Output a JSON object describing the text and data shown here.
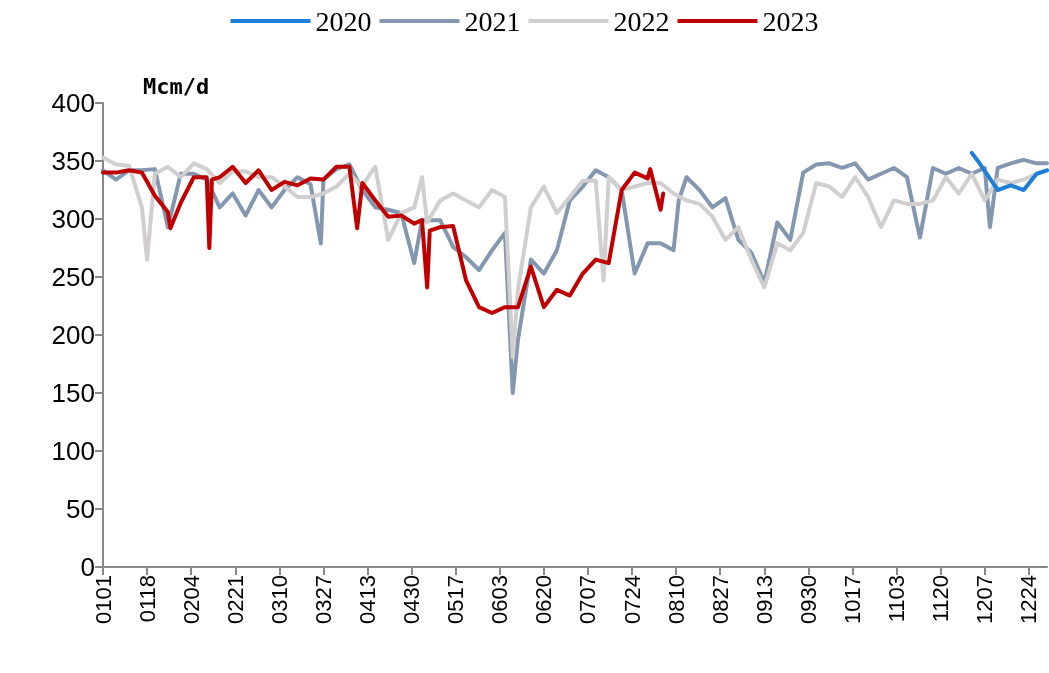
{
  "chart_data": {
    "type": "line",
    "ylabel": "Mcm/d",
    "xlim": [
      "--01-01",
      "--12-31"
    ],
    "xticks": [
      {
        "value": "--01-01",
        "label": "0101"
      },
      {
        "value": "--01-18",
        "label": "0118"
      },
      {
        "value": "--02-04",
        "label": "0204"
      },
      {
        "value": "--02-21",
        "label": "0221"
      },
      {
        "value": "--03-10",
        "label": "0310"
      },
      {
        "value": "--03-27",
        "label": "0327"
      },
      {
        "value": "--04-13",
        "label": "0413"
      },
      {
        "value": "--04-30",
        "label": "0430"
      },
      {
        "value": "--05-17",
        "label": "0517"
      },
      {
        "value": "--06-03",
        "label": "0603"
      },
      {
        "value": "--06-20",
        "label": "0620"
      },
      {
        "value": "--07-07",
        "label": "0707"
      },
      {
        "value": "--07-24",
        "label": "0724"
      },
      {
        "value": "--08-10",
        "label": "0810"
      },
      {
        "value": "--08-27",
        "label": "0827"
      },
      {
        "value": "--09-13",
        "label": "0913"
      },
      {
        "value": "--09-30",
        "label": "0930"
      },
      {
        "value": "--10-17",
        "label": "1017"
      },
      {
        "value": "--11-03",
        "label": "1103"
      },
      {
        "value": "--11-20",
        "label": "1120"
      },
      {
        "value": "--12-07",
        "label": "1207"
      },
      {
        "value": "--12-24",
        "label": "1224"
      }
    ],
    "ylim": [
      0,
      400
    ],
    "yticks": [
      0,
      50,
      100,
      150,
      200,
      250,
      300,
      350,
      400
    ],
    "grid": false,
    "legend": "top",
    "marker": "none",
    "line_style": "solid",
    "series": [
      {
        "name": "2020",
        "color": "#1f7fd8",
        "x": [
          "--12-02",
          "--12-05",
          "--12-12",
          "--12-17",
          "--12-22",
          "--12-27",
          "--12-31"
        ],
        "values": [
          357,
          348,
          325,
          329,
          325,
          339,
          342
        ]
      },
      {
        "name": "2021",
        "color": "#8497b0",
        "x": [
          "--01-01",
          "--01-06",
          "--01-11",
          "--01-16",
          "--01-21",
          "--01-26",
          "--01-31",
          "--02-05",
          "--02-10",
          "--02-15",
          "--02-20",
          "--02-25",
          "--03-02",
          "--03-07",
          "--03-12",
          "--03-17",
          "--03-22",
          "--03-26",
          "--03-27",
          "--04-01",
          "--04-06",
          "--04-11",
          "--04-16",
          "--04-21",
          "--04-26",
          "--05-01",
          "--05-04",
          "--05-11",
          "--05-16",
          "--05-21",
          "--05-26",
          "--05-31",
          "--06-05",
          "--06-08",
          "--06-10",
          "--06-15",
          "--06-20",
          "--06-25",
          "--06-30",
          "--07-05",
          "--07-10",
          "--07-15",
          "--07-20",
          "--07-25",
          "--07-30",
          "--08-04",
          "--08-09",
          "--08-11",
          "--08-14",
          "--08-19",
          "--08-24",
          "--08-29",
          "--09-03",
          "--09-08",
          "--09-13",
          "--09-18",
          "--09-23",
          "--09-28",
          "--10-03",
          "--10-08",
          "--10-13",
          "--10-18",
          "--10-23",
          "--10-28",
          "--11-02",
          "--11-07",
          "--11-12",
          "--11-17",
          "--11-22",
          "--11-27",
          "--12-02",
          "--12-07",
          "--12-09",
          "--12-12",
          "--12-17",
          "--12-22",
          "--12-27",
          "--12-31"
        ],
        "values": [
          342,
          334,
          342,
          342,
          343,
          293,
          339,
          339,
          334,
          310,
          322,
          303,
          325,
          310,
          325,
          336,
          330,
          279,
          334,
          343,
          347,
          325,
          310,
          308,
          305,
          262,
          299,
          299,
          276,
          267,
          256,
          273,
          288,
          150,
          196,
          265,
          253,
          273,
          316,
          328,
          342,
          336,
          325,
          253,
          279,
          279,
          273,
          316,
          336,
          325,
          310,
          318,
          282,
          271,
          245,
          297,
          282,
          340,
          347,
          348,
          344,
          348,
          334,
          339,
          344,
          336,
          284,
          344,
          339,
          344,
          339,
          344,
          293,
          344,
          348,
          351,
          348,
          348
        ]
      },
      {
        "name": "2022",
        "color": "#d0cece",
        "x": [
          "--01-01",
          "--01-06",
          "--01-11",
          "--01-16",
          "--01-18",
          "--01-21",
          "--01-26",
          "--01-31",
          "--02-05",
          "--02-10",
          "--02-15",
          "--02-20",
          "--02-25",
          "--03-02",
          "--03-07",
          "--03-12",
          "--03-17",
          "--03-22",
          "--03-27",
          "--04-01",
          "--04-06",
          "--04-11",
          "--04-14",
          "--04-16",
          "--04-21",
          "--04-26",
          "--05-01",
          "--05-04",
          "--05-06",
          "--05-11",
          "--05-16",
          "--05-21",
          "--05-26",
          "--05-31",
          "--06-05",
          "--06-08",
          "--06-10",
          "--06-15",
          "--06-20",
          "--06-25",
          "--06-30",
          "--07-05",
          "--07-10",
          "--07-13",
          "--07-15",
          "--07-20",
          "--07-25",
          "--07-30",
          "--08-04",
          "--08-09",
          "--08-14",
          "--08-19",
          "--08-24",
          "--08-29",
          "--09-03",
          "--09-08",
          "--09-13",
          "--09-18",
          "--09-23",
          "--09-28",
          "--10-03",
          "--10-08",
          "--10-13",
          "--10-18",
          "--10-23",
          "--10-28",
          "--11-02",
          "--11-07",
          "--11-12",
          "--11-17",
          "--11-22",
          "--11-27",
          "--12-02",
          "--12-07",
          "--12-12",
          "--12-17",
          "--12-22",
          "--12-27",
          "--12-31"
        ],
        "values": [
          353,
          347,
          346,
          310,
          265,
          339,
          345,
          336,
          348,
          343,
          331,
          341,
          341,
          336,
          336,
          328,
          319,
          319,
          322,
          328,
          339,
          328,
          339,
          345,
          282,
          305,
          310,
          336,
          297,
          316,
          322,
          316,
          310,
          325,
          319,
          181,
          239,
          310,
          328,
          305,
          319,
          333,
          333,
          247,
          336,
          325,
          328,
          331,
          331,
          322,
          316,
          313,
          302,
          282,
          293,
          265,
          241,
          279,
          273,
          288,
          331,
          328,
          319,
          336,
          319,
          293,
          316,
          313,
          313,
          316,
          336,
          322,
          339,
          316,
          334,
          331,
          334,
          339,
          342
        ]
      },
      {
        "name": "2023",
        "color": "#c00000",
        "x": [
          "--01-01",
          "--01-06",
          "--01-11",
          "--01-16",
          "--01-21",
          "--01-26",
          "--01-27",
          "--01-31",
          "--02-05",
          "--02-10",
          "--02-11",
          "--02-12",
          "--02-15",
          "--02-20",
          "--02-25",
          "--03-02",
          "--03-07",
          "--03-12",
          "--03-17",
          "--03-22",
          "--03-27",
          "--04-01",
          "--04-06",
          "--04-09",
          "--04-11",
          "--04-16",
          "--04-21",
          "--04-26",
          "--05-01",
          "--05-04",
          "--05-06",
          "--05-07",
          "--05-11",
          "--05-16",
          "--05-21",
          "--05-26",
          "--05-31",
          "--06-05",
          "--06-10",
          "--06-15",
          "--06-20",
          "--06-25",
          "--06-30",
          "--07-05",
          "--07-10",
          "--07-15",
          "--07-20",
          "--07-25",
          "--07-30",
          "--07-31",
          "--08-04",
          "--08-05"
        ],
        "values": [
          340,
          340,
          342,
          340,
          320,
          306,
          292,
          314,
          336,
          336,
          275,
          334,
          336,
          345,
          331,
          342,
          325,
          332,
          329,
          335,
          334,
          345,
          345,
          292,
          331,
          316,
          302,
          303,
          296,
          299,
          241,
          290,
          293,
          294,
          247,
          224,
          219,
          224,
          224,
          259,
          224,
          239,
          234,
          253,
          265,
          262,
          325,
          340,
          335,
          343,
          308,
          322
        ]
      }
    ]
  }
}
